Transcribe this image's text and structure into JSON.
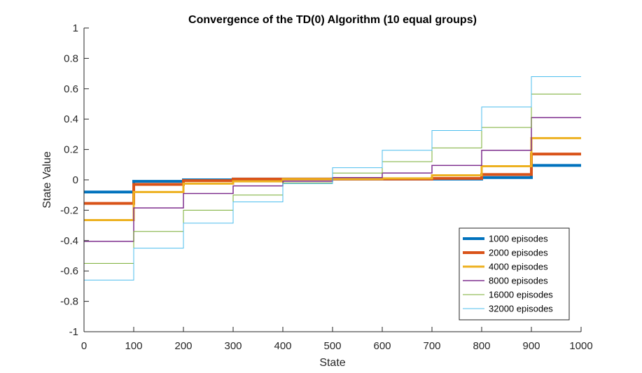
{
  "chart_data": {
    "type": "line",
    "title": "Convergence of the TD(0) Algorithm (10 equal groups)",
    "xlabel": "State",
    "ylabel": "State Value",
    "xlim": [
      0,
      1000
    ],
    "ylim": [
      -1,
      1
    ],
    "xticks": [
      "0",
      "100",
      "200",
      "300",
      "400",
      "500",
      "600",
      "700",
      "800",
      "900",
      "1000"
    ],
    "yticks": [
      "1",
      "0.8",
      "0.6",
      "0.4",
      "0.2",
      "0",
      "-0.2",
      "-0.4",
      "-0.6",
      "-0.8",
      "-1"
    ],
    "grid": false,
    "legend_position": "bottom-right",
    "step_edges": [
      0,
      100,
      200,
      300,
      400,
      500,
      600,
      700,
      800,
      900,
      1000
    ],
    "series": [
      {
        "name": "1000 episodes",
        "color": "#0072BD",
        "line_width": 4,
        "values": [
          -0.08,
          -0.01,
          0.0,
          0.005,
          0.005,
          0.005,
          0.005,
          0.005,
          0.015,
          0.095
        ]
      },
      {
        "name": "2000 episodes",
        "color": "#D95319",
        "line_width": 4,
        "values": [
          -0.155,
          -0.03,
          -0.005,
          0.005,
          0.005,
          0.005,
          0.005,
          0.01,
          0.035,
          0.17
        ]
      },
      {
        "name": "4000 episodes",
        "color": "#EDB120",
        "line_width": 3,
        "values": [
          -0.265,
          -0.08,
          -0.025,
          -0.01,
          0.005,
          0.005,
          0.01,
          0.03,
          0.09,
          0.275
        ]
      },
      {
        "name": "8000 episodes",
        "color": "#7E2F8E",
        "line_width": 1.5,
        "values": [
          -0.405,
          -0.185,
          -0.09,
          -0.04,
          -0.01,
          0.015,
          0.045,
          0.095,
          0.195,
          0.41
        ]
      },
      {
        "name": "16000 episodes",
        "color": "#77AC30",
        "line_width": 1,
        "values": [
          -0.55,
          -0.34,
          -0.2,
          -0.1,
          -0.02,
          0.045,
          0.12,
          0.21,
          0.345,
          0.565
        ]
      },
      {
        "name": "32000 episodes",
        "color": "#4DBEEE",
        "line_width": 1,
        "values": [
          -0.66,
          -0.45,
          -0.285,
          -0.145,
          -0.025,
          0.08,
          0.195,
          0.325,
          0.48,
          0.68
        ]
      }
    ]
  }
}
